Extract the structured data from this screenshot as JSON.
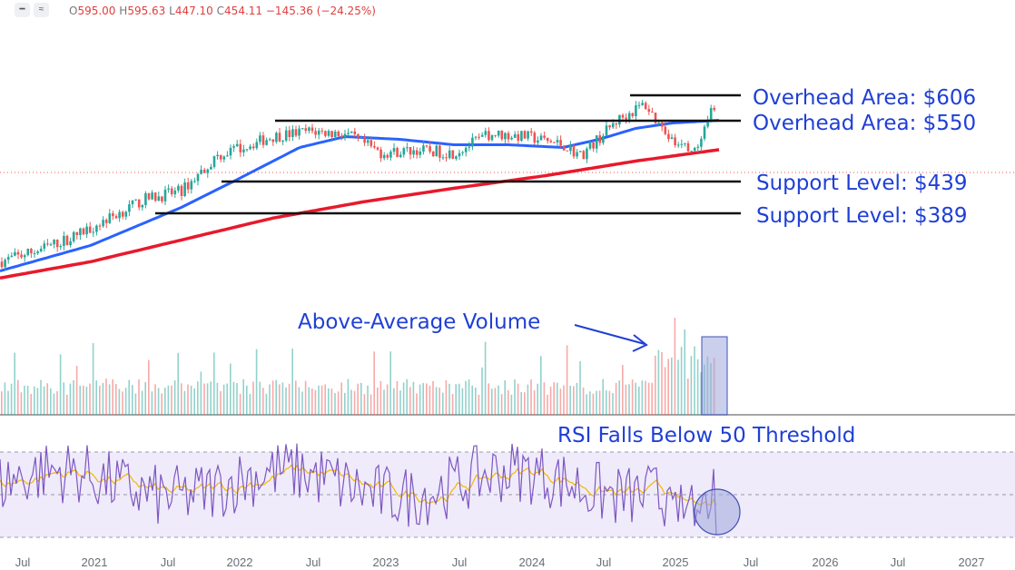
{
  "header": {
    "icons": [
      "minus-icon",
      "wave-icon"
    ],
    "ohlc": {
      "open_label": "O",
      "open": "595.00",
      "high_label": "H",
      "high": "595.63",
      "low_label": "L",
      "low": "447.10",
      "close_label": "C",
      "close": "454.11",
      "change": "−145.36 (−24.25%)"
    }
  },
  "annotations": {
    "overhead1": "Overhead Area: $606",
    "overhead2": "Overhead Area: $550",
    "support1": "Support Level: $439",
    "support2": "Support Level: $389",
    "volume": "Above-Average Volume",
    "rsi": "RSI Falls Below 50 Threshold"
  },
  "colors": {
    "up": "#26a69a",
    "down": "#ef5350",
    "ma50": "#2962ff",
    "ma200": "#e8192c",
    "annotation": "#1f3fd6",
    "rsi": "#7e57c2",
    "rsi_ma": "#f5b700"
  },
  "chart_data": {
    "type": "candlestick",
    "x_tick_labels": [
      "Jul",
      "2021",
      "Jul",
      "2022",
      "Jul",
      "2023",
      "Jul",
      "2024",
      "Jul",
      "2025",
      "Jul",
      "2026",
      "Jul",
      "2027"
    ],
    "price_series": {
      "date_range": [
        "2020-06",
        "2025-04"
      ],
      "close_approx": [
        [
          "2020-06",
          300
        ],
        [
          "2020-09",
          320
        ],
        [
          "2020-12",
          345
        ],
        [
          "2021-03",
          380
        ],
        [
          "2021-06",
          415
        ],
        [
          "2021-09",
          430
        ],
        [
          "2021-12",
          495
        ],
        [
          "2022-03",
          530
        ],
        [
          "2022-06",
          540
        ],
        [
          "2022-09",
          535
        ],
        [
          "2022-12",
          500
        ],
        [
          "2023-03",
          505
        ],
        [
          "2023-06",
          500
        ],
        [
          "2023-09",
          535
        ],
        [
          "2023-12",
          530
        ],
        [
          "2024-03",
          515
        ],
        [
          "2024-06",
          495
        ],
        [
          "2024-09",
          560
        ],
        [
          "2024-11",
          590
        ],
        [
          "2025-01",
          520
        ],
        [
          "2025-02",
          500
        ],
        [
          "2025-03",
          595
        ],
        [
          "2025-04",
          454
        ]
      ]
    },
    "moving_averages": [
      {
        "name": "",
        "values_approx": [
          [
            2020.5,
            280
          ],
          [
            2021.5,
            370
          ],
          [
            2022.25,
            455
          ],
          [
            2022.75,
            520
          ],
          [
            2023.5,
            515
          ],
          [
            2024.5,
            525
          ],
          [
            2025.0,
            550
          ],
          [
            2025.25,
            555
          ]
        ]
      },
      {
        "name": "",
        "values_approx": [
          [
            2020.5,
            265
          ],
          [
            2021.5,
            320
          ],
          [
            2022.5,
            390
          ],
          [
            2023.5,
            430
          ],
          [
            2024.5,
            480
          ],
          [
            2025.0,
            500
          ],
          [
            2025.25,
            512
          ]
        ]
      }
    ],
    "levels": [
      606,
      550,
      439,
      389
    ],
    "volume": {
      "note": "bars",
      "highlight_range": [
        "2025-03",
        "2025-04"
      ]
    },
    "rsi": {
      "threshold_lines": [
        70,
        50,
        30
      ],
      "last_value_approx": 30
    }
  }
}
